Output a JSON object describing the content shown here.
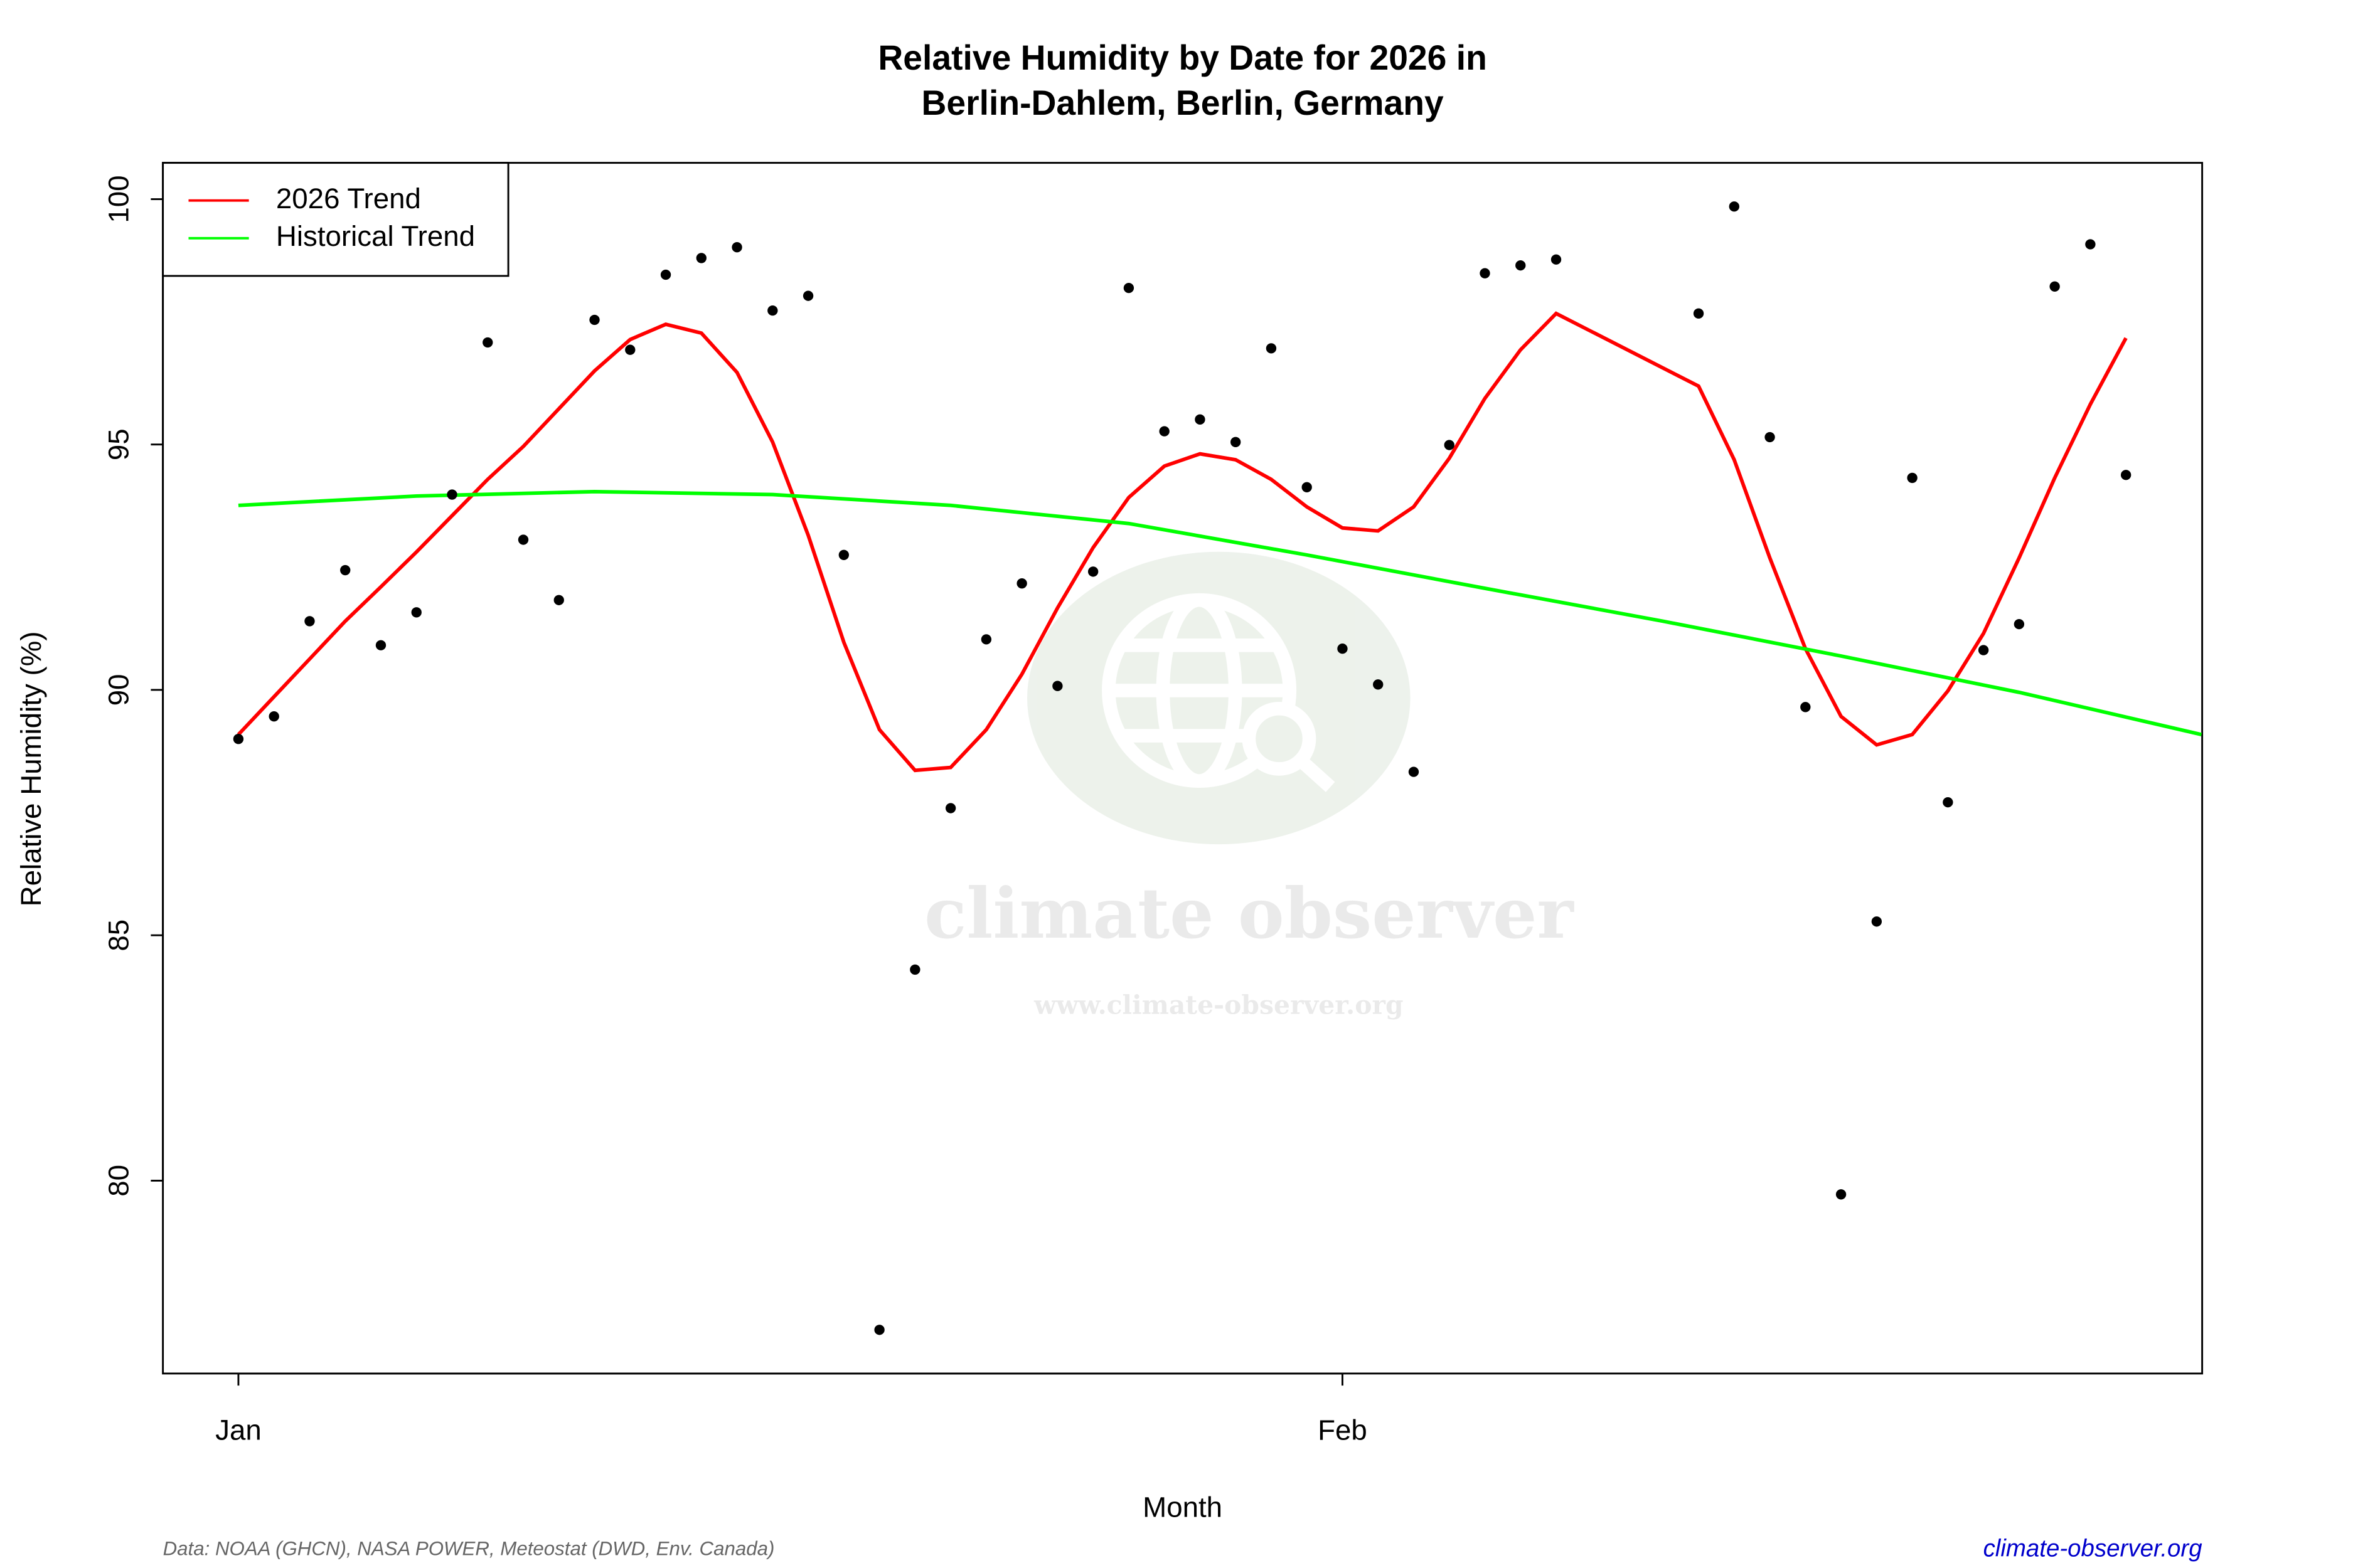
{
  "chart_data": {
    "type": "scatter",
    "title": [
      "Relative Humidity by Date for 2026 in",
      "Berlin-Dahlem, Berlin, Germany"
    ],
    "xlabel": "Month",
    "ylabel": "Relative Humidity (%)",
    "x": [
      0,
      1,
      2,
      3,
      4,
      5,
      6,
      7,
      8,
      9,
      10,
      11,
      12,
      13,
      14,
      15,
      16,
      17,
      18,
      19,
      20,
      21,
      22,
      23,
      24,
      25,
      26,
      27,
      28,
      29,
      30,
      31,
      32,
      33,
      34,
      35,
      36,
      37,
      41,
      42,
      43,
      44,
      45,
      46,
      47,
      48,
      49,
      50,
      51,
      52,
      53
    ],
    "values": [
      89.0,
      89.46,
      91.4,
      92.44,
      90.91,
      91.58,
      93.98,
      97.08,
      93.06,
      91.83,
      97.54,
      96.93,
      98.46,
      98.8,
      99.02,
      97.73,
      98.03,
      92.75,
      76.96,
      84.3,
      87.59,
      91.03,
      92.17,
      90.08,
      92.41,
      98.19,
      95.27,
      95.51,
      95.05,
      96.96,
      94.13,
      90.84,
      90.11,
      88.33,
      94.99,
      98.49,
      98.65,
      98.77,
      97.67,
      99.85,
      95.15,
      89.65,
      79.72,
      85.28,
      94.32,
      87.71,
      90.81,
      91.34,
      98.22,
      99.08,
      94.38
    ],
    "color": "#000000",
    "series": [
      {
        "name": "2026 Trend",
        "color": "#ff0000",
        "x": [
          0,
          1,
          2,
          3,
          4,
          5,
          6,
          7,
          8,
          9,
          10,
          11,
          12,
          13,
          14,
          15,
          16,
          17,
          18,
          19,
          20,
          21,
          22,
          23,
          24,
          25,
          26,
          27,
          28,
          29,
          30,
          31,
          32,
          33,
          34,
          35,
          36,
          37,
          41,
          42,
          43,
          44,
          45,
          46,
          47,
          48,
          49,
          50,
          51,
          52,
          53
        ],
        "values": [
          89.09,
          89.86,
          90.63,
          91.4,
          92.1,
          92.81,
          93.55,
          94.29,
          94.96,
          95.73,
          96.5,
          97.14,
          97.45,
          97.27,
          96.47,
          95.05,
          93.15,
          90.97,
          89.19,
          88.36,
          88.42,
          89.19,
          90.32,
          91.67,
          92.9,
          93.92,
          94.56,
          94.81,
          94.69,
          94.29,
          93.73,
          93.3,
          93.24,
          93.73,
          94.72,
          95.94,
          96.93,
          97.67,
          96.19,
          94.69,
          92.69,
          90.84,
          89.46,
          88.88,
          89.09,
          89.98,
          91.15,
          92.69,
          94.32,
          95.82,
          97.17
        ]
      },
      {
        "name": "Historical Trend",
        "color": "#00ff00",
        "x": [
          0,
          5,
          10,
          15,
          20,
          25,
          30,
          35,
          40,
          45,
          50,
          55.12
        ],
        "values": [
          93.76,
          93.95,
          94.04,
          93.98,
          93.76,
          93.39,
          92.75,
          92.07,
          91.4,
          90.69,
          89.95,
          89.09
        ]
      }
    ],
    "xlim": [
      -2.12,
      55.14
    ],
    "ylim": [
      76.07,
      100.74
    ],
    "xticks": [
      {
        "value": 0,
        "label": "Jan"
      },
      {
        "value": 31,
        "label": "Feb"
      }
    ],
    "yticks": [
      80,
      85,
      90,
      95,
      100
    ],
    "grid": false,
    "legend": "top-left",
    "source": "Data: NOAA (GHCN), NASA POWER, Meteostat (DWD, Env. Canada)",
    "website": "climate-observer.org",
    "watermark": {
      "name": "climate observer",
      "url": "www.climate-observer.org"
    }
  }
}
